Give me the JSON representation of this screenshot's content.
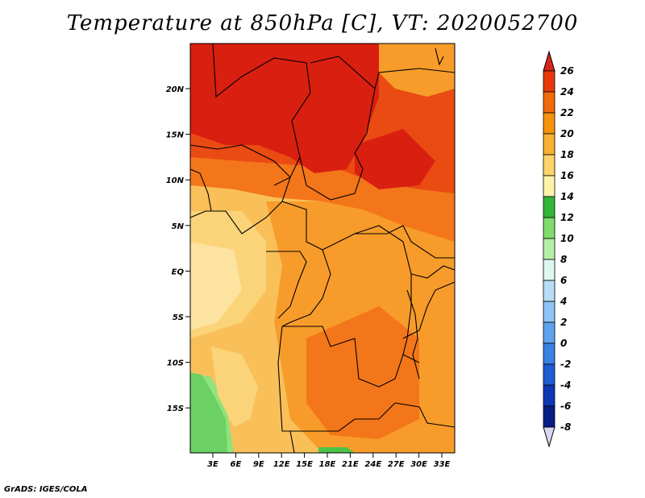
{
  "title": "Temperature at 850hPa [C], VT: 2020052700",
  "footer": "GrADS: IGES/COLA",
  "lat_labels": [
    "20N",
    "15N",
    "10N",
    "5N",
    "EQ",
    "5S",
    "10S",
    "15S"
  ],
  "lon_labels": [
    "3E",
    "6E",
    "9E",
    "12E",
    "15E",
    "18E",
    "21E",
    "24E",
    "27E",
    "30E",
    "33E"
  ],
  "colorbar": {
    "labels": [
      "26",
      "24",
      "22",
      "20",
      "18",
      "16",
      "14",
      "12",
      "10",
      "8",
      "6",
      "4",
      "2",
      "0",
      "-2",
      "-4",
      "-6",
      "-8"
    ],
    "colors": [
      "#c8102e",
      "#e8380a",
      "#f26a0a",
      "#f7920d",
      "#f8b132",
      "#fbd46a",
      "#fdf3a8",
      "#34b53a",
      "#7fdc6c",
      "#b5f0a8",
      "#def8f0",
      "#b8ddf7",
      "#8ec3f5",
      "#5fa2ee",
      "#3b81e6",
      "#1f5bd3",
      "#0c38b6",
      "#071c84",
      "#09106a"
    ],
    "arrow_top_color": "#d9261c",
    "arrow_bottom_color": "#d8d8f2"
  },
  "colors": {
    "hot": "#d91f10",
    "red_orange": "#ea4b13",
    "orange": "#f4761a",
    "light_orange": "#f79c2a",
    "amber": "#f8b444",
    "yellow": "#fcd67b",
    "green": "#4cc24a",
    "light_green": "#8fe27e",
    "border": "#000000"
  }
}
